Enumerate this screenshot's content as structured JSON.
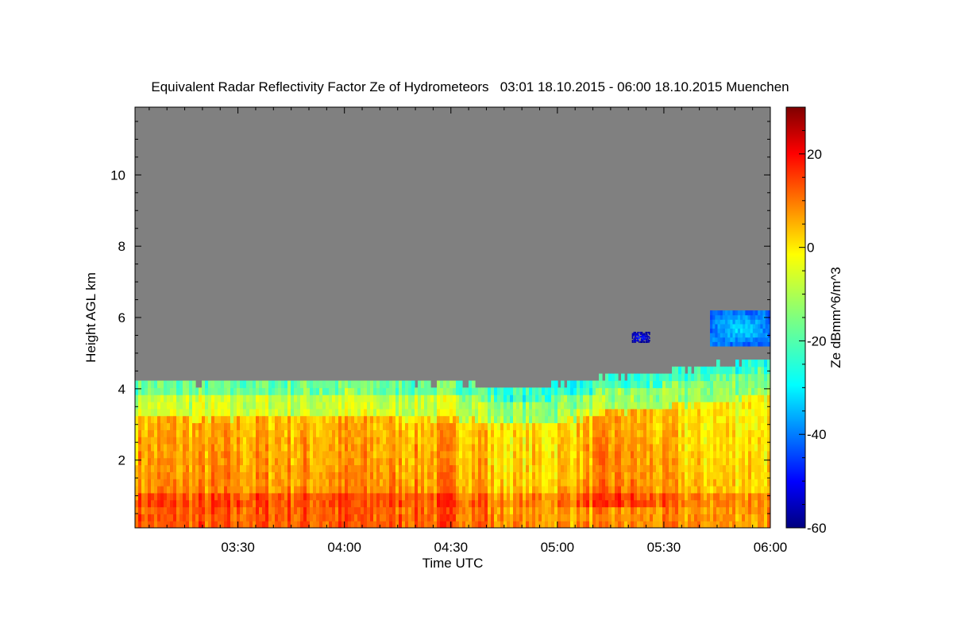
{
  "chart_data": {
    "type": "heatmap",
    "title": "Equivalent Radar Reflectivity Factor Ze of Hydrometeors   03:01 18.10.2015 - 06:00 18.10.2015 Muenchen",
    "xlabel": "Time UTC",
    "ylabel": "Height AGL km",
    "x_range": [
      "03:01",
      "06:00"
    ],
    "y_range_km": [
      0.1,
      11.9
    ],
    "x_ticks": [
      "03:30",
      "04:00",
      "04:30",
      "05:00",
      "05:30",
      "06:00"
    ],
    "y_ticks": [
      2,
      4,
      6,
      8,
      10
    ],
    "colorbar": {
      "label": "Ze dBmm^6/m^3",
      "range": [
        -60,
        30
      ],
      "ticks": [
        20,
        0,
        -20,
        -40,
        -60
      ],
      "colormap": "jet"
    },
    "no_data_color": "#808080",
    "cloud_top_km": [
      {
        "time": "03:01",
        "top": 4.1
      },
      {
        "time": "03:30",
        "top": 4.1
      },
      {
        "time": "04:00",
        "top": 4.15
      },
      {
        "time": "04:30",
        "top": 4.05
      },
      {
        "time": "04:50",
        "top": 3.9
      },
      {
        "time": "05:00",
        "top": 4.0
      },
      {
        "time": "05:20",
        "top": 4.3
      },
      {
        "time": "05:40",
        "top": 4.5
      },
      {
        "time": "06:00",
        "top": 4.8
      }
    ],
    "bright_band_height_km": 0.8,
    "elevated_layers": [
      {
        "start": "05:43",
        "end": "06:00",
        "bottom_km": 5.2,
        "top_km": 6.2,
        "ze_dbz": -27
      },
      {
        "start": "05:21",
        "end": "05:26",
        "bottom_km": 5.3,
        "top_km": 5.6,
        "ze_dbz": -45
      }
    ]
  }
}
